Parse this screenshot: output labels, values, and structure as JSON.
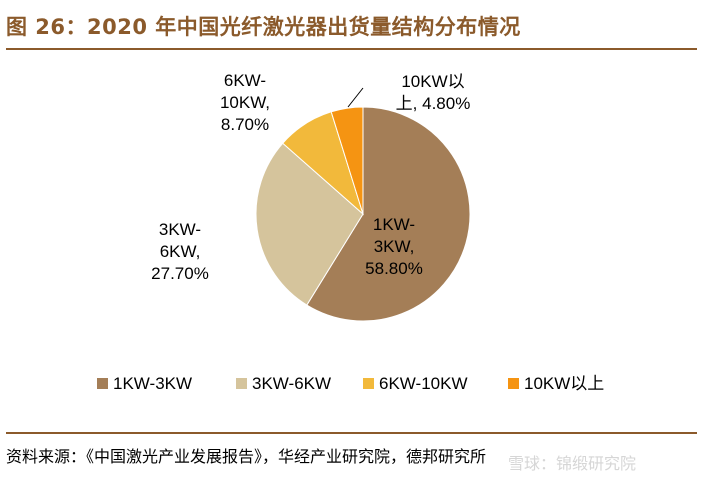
{
  "header": {
    "title": "图 26：2020 年中国光纤激光器出货量结构分布情况"
  },
  "chart_data": {
    "type": "pie",
    "title": "图 26：2020 年中国光纤激光器出货量结构分布情况",
    "slices": [
      {
        "name": "1KW-3KW",
        "value": 58.8,
        "label_lines": [
          "1KW-",
          "3KW,",
          "58.80%"
        ],
        "color": "#A47E57"
      },
      {
        "name": "3KW-6KW",
        "value": 27.7,
        "label_lines": [
          "3KW-",
          "6KW,",
          "27.70%"
        ],
        "color": "#D5C49C"
      },
      {
        "name": "6KW-10KW",
        "value": 8.7,
        "label_lines": [
          "6KW-",
          "10KW,",
          "8.70%"
        ],
        "color": "#F2B93B"
      },
      {
        "name": "10KW以上",
        "value": 4.8,
        "label_lines": [
          "10KW以",
          "上, 4.80%"
        ],
        "color": "#F59412"
      }
    ],
    "legend": {
      "position": "bottom",
      "items": [
        "1KW-3KW",
        "3KW-6KW",
        "6KW-10KW",
        "10KW以上"
      ]
    }
  },
  "footer": {
    "source": "资料来源：《中国激光产业发展报告》，华经产业研究院，德邦研究所",
    "watermark": "雪球：锦缎研究院"
  }
}
